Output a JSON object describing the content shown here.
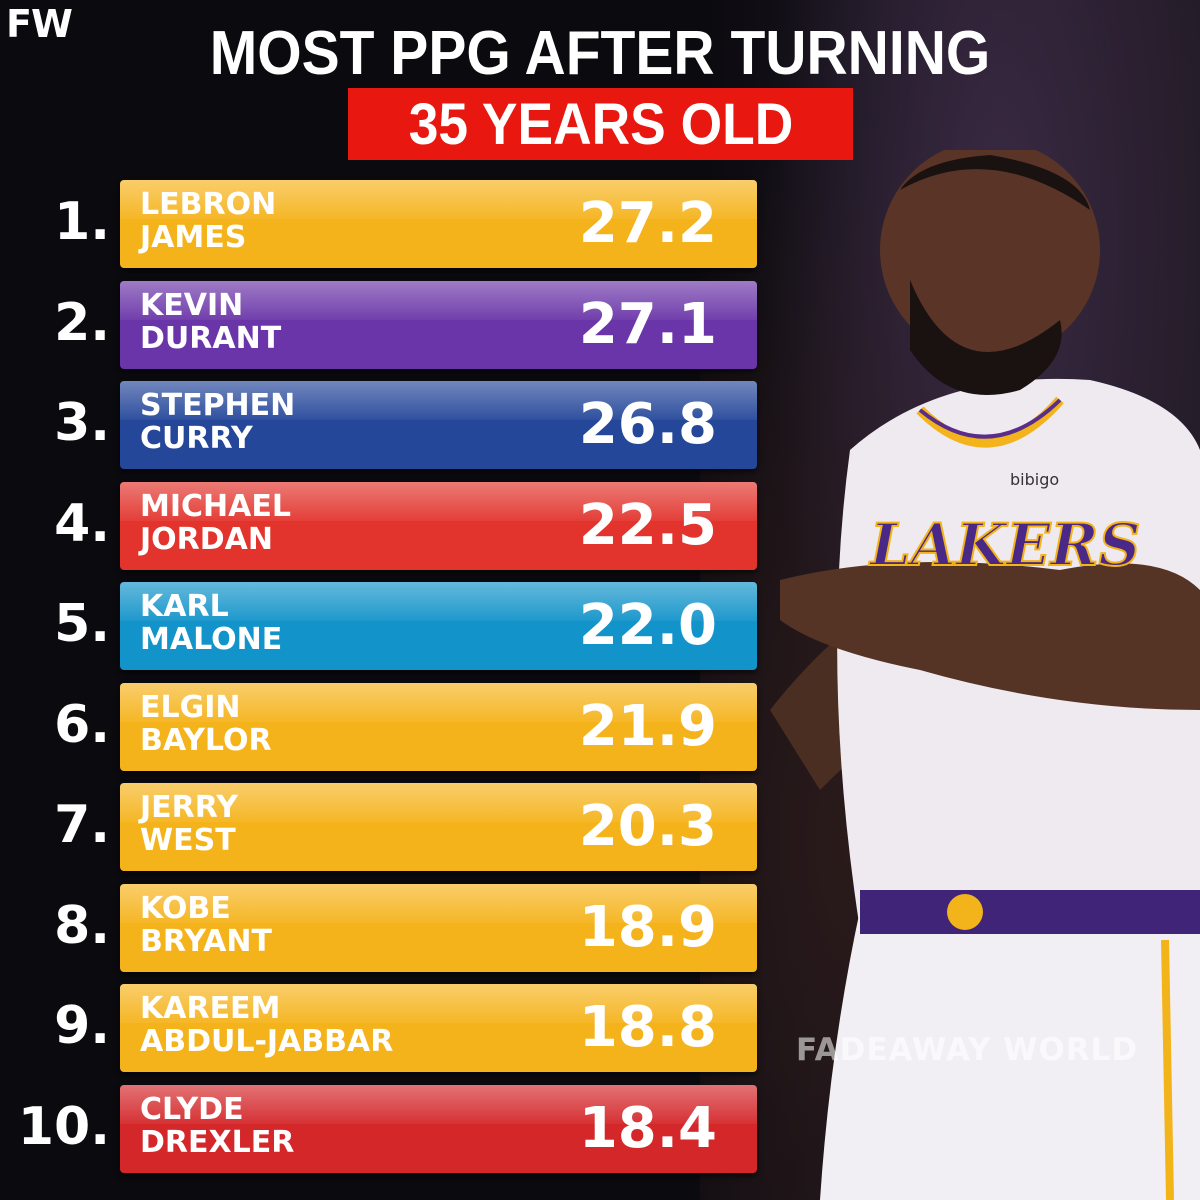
{
  "brand": {
    "logo_text": "FW",
    "watermark": "FADEAWAY WORLD"
  },
  "header": {
    "line1": "MOST PPG AFTER TURNING",
    "line2": "35 YEARS OLD"
  },
  "rows": [
    {
      "rank": "1.",
      "name": "LEBRON\nJAMES",
      "ppg": "27.2",
      "color": "#f5b31b"
    },
    {
      "rank": "2.",
      "name": "KEVIN\nDURANT",
      "ppg": "27.1",
      "color": "#6a35a8"
    },
    {
      "rank": "3.",
      "name": "STEPHEN\nCURRY",
      "ppg": "26.8",
      "color": "#25479a"
    },
    {
      "rank": "4.",
      "name": "MICHAEL\nJORDAN",
      "ppg": "22.5",
      "color": "#e2342d"
    },
    {
      "rank": "5.",
      "name": "KARL\nMALONE",
      "ppg": "22.0",
      "color": "#1293c9"
    },
    {
      "rank": "6.",
      "name": "ELGIN\nBAYLOR",
      "ppg": "21.9",
      "color": "#f5b31b"
    },
    {
      "rank": "7.",
      "name": "JERRY\nWEST",
      "ppg": "20.3",
      "color": "#f5b31b"
    },
    {
      "rank": "8.",
      "name": "KOBE\nBRYANT",
      "ppg": "18.9",
      "color": "#f5b31b"
    },
    {
      "rank": "9.",
      "name": "KAREEM\nABDUL-JABBAR",
      "ppg": "18.8",
      "color": "#f5b31b"
    },
    {
      "rank": "10.",
      "name": "CLYDE\nDREXLER",
      "ppg": "18.4",
      "color": "#d3272a"
    }
  ],
  "jersey": {
    "team": "LAKERS",
    "sponsor": "bibigo"
  }
}
